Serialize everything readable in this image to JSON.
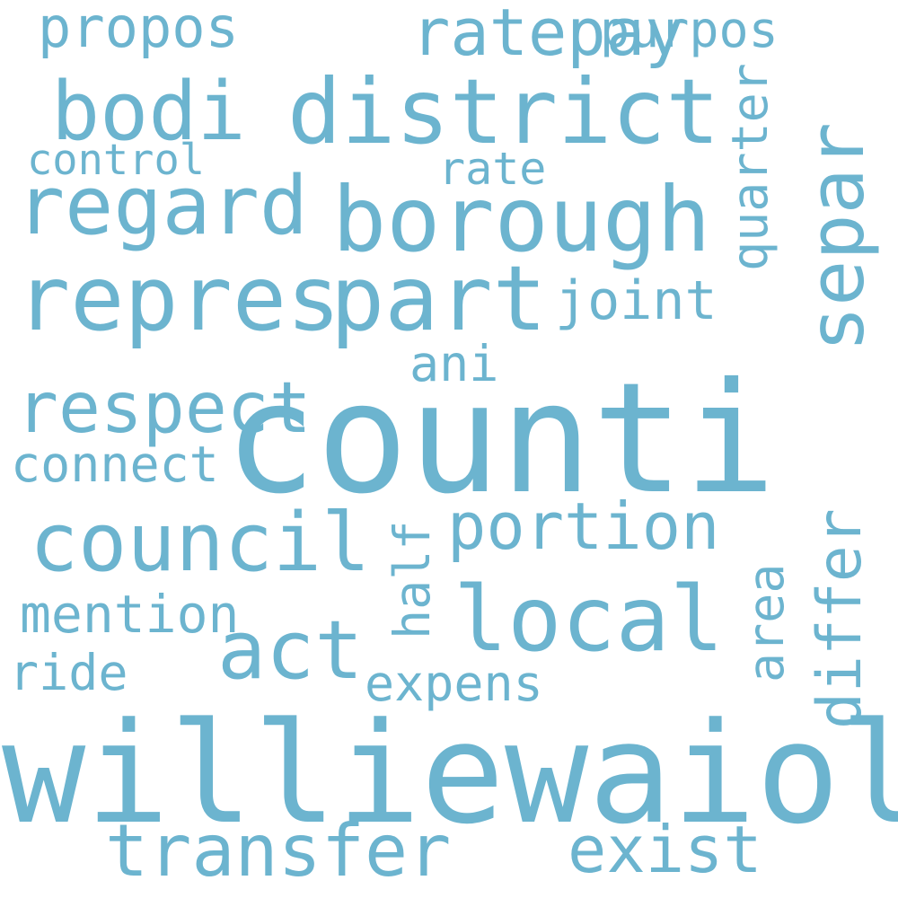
{
  "colors": {
    "text": "#6cb4cf",
    "background": "#ffffff"
  },
  "words": [
    "counti",
    "williewaiola",
    "district",
    "borough",
    "part",
    "repres",
    "bodi",
    "regard",
    "council",
    "local",
    "act",
    "transfer",
    "exist",
    "respect",
    "portion",
    "joint",
    "ratepay",
    "propos",
    "purpos",
    "rate",
    "control",
    "ani",
    "connect",
    "mention",
    "ride",
    "expens",
    "separ",
    "differ",
    "quarter",
    "half",
    "area"
  ]
}
